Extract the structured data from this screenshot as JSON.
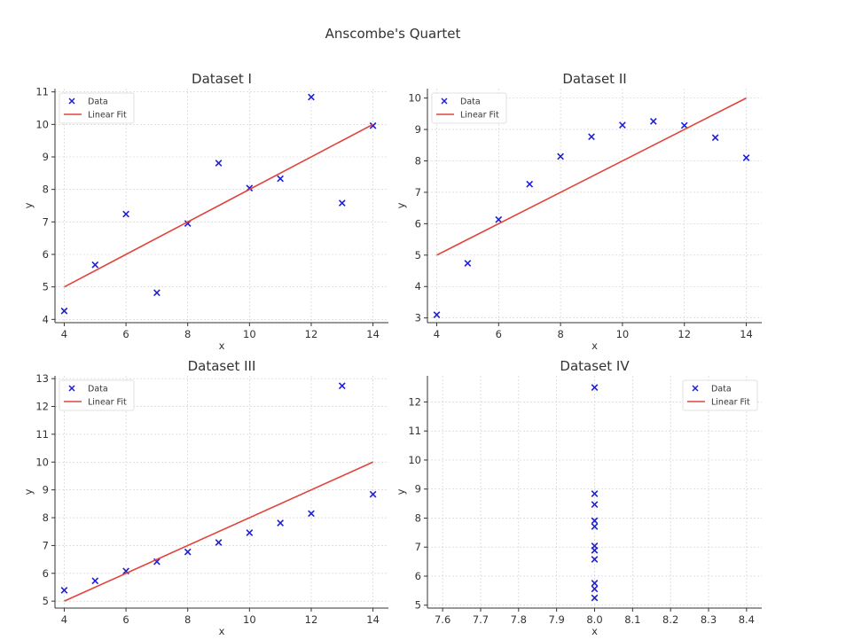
{
  "figure": {
    "title": "Anscombe's Quartet"
  },
  "chart_data": [
    {
      "type": "scatter",
      "title": "Dataset I",
      "xlabel": "x",
      "ylabel": "y",
      "xlim": [
        3.7,
        14.5
      ],
      "ylim": [
        3.9,
        11.1
      ],
      "xticks": [
        4,
        6,
        8,
        10,
        12,
        14
      ],
      "yticks": [
        4,
        5,
        6,
        7,
        8,
        9,
        10,
        11
      ],
      "legend": {
        "placement": "top-left",
        "entries": [
          "Data",
          "Linear Fit"
        ]
      },
      "series": [
        {
          "name": "Data",
          "marker": "x",
          "color": "#1f1fd6",
          "x": [
            10,
            8,
            13,
            9,
            11,
            14,
            6,
            4,
            12,
            7,
            5
          ],
          "y": [
            8.04,
            6.95,
            7.58,
            8.81,
            8.33,
            9.96,
            7.24,
            4.26,
            10.84,
            4.82,
            5.68
          ]
        },
        {
          "name": "Linear Fit",
          "color": "#e0443b",
          "x": [
            4,
            14
          ],
          "y": [
            5.0,
            10.0
          ]
        }
      ],
      "grid": true
    },
    {
      "type": "scatter",
      "title": "Dataset II",
      "xlabel": "x",
      "ylabel": "y",
      "xlim": [
        3.7,
        14.5
      ],
      "ylim": [
        2.85,
        10.3
      ],
      "xticks": [
        4,
        6,
        8,
        10,
        12,
        14
      ],
      "yticks": [
        3,
        4,
        5,
        6,
        7,
        8,
        9,
        10
      ],
      "legend": {
        "placement": "top-left",
        "entries": [
          "Data",
          "Linear Fit"
        ]
      },
      "series": [
        {
          "name": "Data",
          "marker": "x",
          "color": "#1f1fd6",
          "x": [
            10,
            8,
            13,
            9,
            11,
            14,
            6,
            4,
            12,
            7,
            5
          ],
          "y": [
            9.14,
            8.14,
            8.74,
            8.77,
            9.26,
            8.1,
            6.13,
            3.1,
            9.13,
            7.26,
            4.74
          ]
        },
        {
          "name": "Linear Fit",
          "color": "#e0443b",
          "x": [
            4,
            14
          ],
          "y": [
            5.0,
            10.0
          ]
        }
      ],
      "grid": true
    },
    {
      "type": "scatter",
      "title": "Dataset III",
      "xlabel": "x",
      "ylabel": "y",
      "xlim": [
        3.7,
        14.5
      ],
      "ylim": [
        4.75,
        13.1
      ],
      "xticks": [
        4,
        6,
        8,
        10,
        12,
        14
      ],
      "yticks": [
        5,
        6,
        7,
        8,
        9,
        10,
        11,
        12,
        13
      ],
      "legend": {
        "placement": "top-left",
        "entries": [
          "Data",
          "Linear Fit"
        ]
      },
      "series": [
        {
          "name": "Data",
          "marker": "x",
          "color": "#1f1fd6",
          "x": [
            10,
            8,
            13,
            9,
            11,
            14,
            6,
            4,
            12,
            7,
            5
          ],
          "y": [
            7.46,
            6.77,
            12.74,
            7.11,
            7.81,
            8.84,
            6.08,
            5.39,
            8.15,
            6.42,
            5.73
          ]
        },
        {
          "name": "Linear Fit",
          "color": "#e0443b",
          "x": [
            4,
            14
          ],
          "y": [
            5.0,
            10.0
          ]
        }
      ],
      "grid": true
    },
    {
      "type": "scatter",
      "title": "Dataset IV",
      "xlabel": "x",
      "ylabel": "y",
      "xlim": [
        7.56,
        8.44
      ],
      "ylim": [
        4.9,
        12.9
      ],
      "xticks": [
        7.6,
        7.7,
        7.8,
        7.9,
        8.0,
        8.1,
        8.2,
        8.3,
        8.4
      ],
      "yticks": [
        5,
        6,
        7,
        8,
        9,
        10,
        11,
        12
      ],
      "legend": {
        "placement": "top-right",
        "entries": [
          "Data",
          "Linear Fit"
        ]
      },
      "series": [
        {
          "name": "Data",
          "marker": "x",
          "color": "#1f1fd6",
          "x": [
            8,
            8,
            8,
            8,
            8,
            8,
            8,
            8,
            8,
            8,
            8
          ],
          "y": [
            6.58,
            5.76,
            7.71,
            8.84,
            8.47,
            7.04,
            5.25,
            12.5,
            5.56,
            7.91,
            6.89
          ]
        },
        {
          "name": "Linear Fit",
          "color": "#e0443b",
          "x": [
            8,
            8
          ],
          "y": [
            7.0,
            7.0
          ]
        }
      ],
      "grid": true
    }
  ]
}
